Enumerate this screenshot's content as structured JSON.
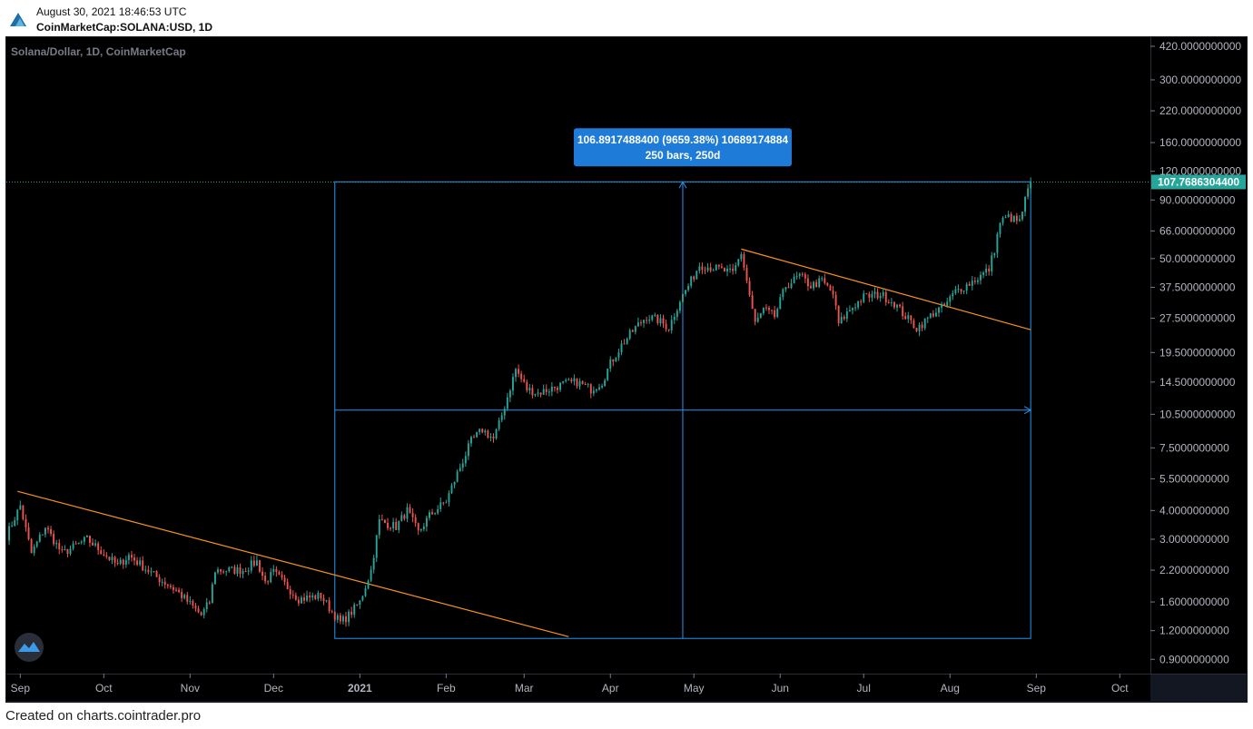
{
  "header": {
    "datetime": "August 30, 2021 18:46:53 UTC",
    "symbol": "CoinMarketCap:SOLANA:USD, 1D",
    "logo_icon": "tradingview-logo-icon"
  },
  "footer": {
    "text": "Created on charts.cointrader.pro"
  },
  "colors": {
    "background": "#000000",
    "up": "#26a69a",
    "down": "#ef5350",
    "trendline": "#f7931a",
    "measure": "#2196f3",
    "price_label_bg": "#26a69a"
  },
  "chart_data": {
    "type": "candlestick",
    "title": "Solana/Dollar, 1D, CoinMarketCap",
    "scale": "log",
    "ylim": [
      0.78,
      460
    ],
    "xlim": [
      "2020-08-27",
      "2021-10-12"
    ],
    "y_ticks": [
      "420.0000000000",
      "300.0000000000",
      "220.0000000000",
      "160.0000000000",
      "120.0000000000",
      "90.0000000000",
      "66.0000000000",
      "50.0000000000",
      "37.5000000000",
      "27.5000000000",
      "19.5000000000",
      "14.5000000000",
      "10.5000000000",
      "7.5000000000",
      "5.5000000000",
      "4.0000000000",
      "3.0000000000",
      "2.2000000000",
      "1.6000000000",
      "1.2000000000",
      "0.9000000000"
    ],
    "x_ticks": [
      {
        "label": "Sep",
        "date": "2020-09-01"
      },
      {
        "label": "Oct",
        "date": "2020-10-01"
      },
      {
        "label": "Nov",
        "date": "2020-11-01"
      },
      {
        "label": "Dec",
        "date": "2020-12-01"
      },
      {
        "label": "2021",
        "date": "2021-01-01"
      },
      {
        "label": "Feb",
        "date": "2021-02-01"
      },
      {
        "label": "Mar",
        "date": "2021-03-01"
      },
      {
        "label": "Apr",
        "date": "2021-04-01"
      },
      {
        "label": "May",
        "date": "2021-05-01"
      },
      {
        "label": "Jun",
        "date": "2021-06-01"
      },
      {
        "label": "Jul",
        "date": "2021-07-01"
      },
      {
        "label": "Aug",
        "date": "2021-08-01"
      },
      {
        "label": "Sep",
        "date": "2021-09-01"
      },
      {
        "label": "Oct",
        "date": "2021-10-01"
      }
    ],
    "last_price": 107.76863044,
    "last_price_label": "107.7686304400",
    "keypoints": [
      [
        "2020-08-27",
        3.1
      ],
      [
        "2020-09-01",
        4.2
      ],
      [
        "2020-09-05",
        2.6
      ],
      [
        "2020-09-10",
        3.4
      ],
      [
        "2020-09-16",
        2.6
      ],
      [
        "2020-09-25",
        3.0
      ],
      [
        "2020-10-01",
        2.6
      ],
      [
        "2020-10-06",
        2.3
      ],
      [
        "2020-10-10",
        2.55
      ],
      [
        "2020-10-20",
        2.05
      ],
      [
        "2020-10-27",
        1.8
      ],
      [
        "2020-11-05",
        1.4
      ],
      [
        "2020-11-08",
        1.6
      ],
      [
        "2020-11-10",
        2.2
      ],
      [
        "2020-11-20",
        2.2
      ],
      [
        "2020-11-25",
        2.4
      ],
      [
        "2020-11-28",
        1.95
      ],
      [
        "2020-12-01",
        2.15
      ],
      [
        "2020-12-10",
        1.65
      ],
      [
        "2020-12-18",
        1.7
      ],
      [
        "2020-12-22",
        1.45
      ],
      [
        "2020-12-25",
        1.3
      ],
      [
        "2020-12-28",
        1.4
      ],
      [
        "2021-01-01",
        1.6
      ],
      [
        "2021-01-05",
        2.2
      ],
      [
        "2021-01-08",
        3.6
      ],
      [
        "2021-01-14",
        3.4
      ],
      [
        "2021-01-18",
        4.0
      ],
      [
        "2021-01-22",
        3.2
      ],
      [
        "2021-01-26",
        3.8
      ],
      [
        "2021-02-01",
        4.4
      ],
      [
        "2021-02-05",
        5.8
      ],
      [
        "2021-02-10",
        8.0
      ],
      [
        "2021-02-14",
        9.0
      ],
      [
        "2021-02-18",
        8.2
      ],
      [
        "2021-02-20",
        9.5
      ],
      [
        "2021-02-23",
        12.5
      ],
      [
        "2021-02-26",
        16.5
      ],
      [
        "2021-03-02",
        13.5
      ],
      [
        "2021-03-06",
        13.0
      ],
      [
        "2021-03-10",
        13.5
      ],
      [
        "2021-03-15",
        14.2
      ],
      [
        "2021-03-20",
        14.5
      ],
      [
        "2021-03-25",
        13.5
      ],
      [
        "2021-03-29",
        14.5
      ],
      [
        "2021-04-01",
        17.5
      ],
      [
        "2021-04-05",
        21
      ],
      [
        "2021-04-10",
        25
      ],
      [
        "2021-04-14",
        28
      ],
      [
        "2021-04-18",
        27
      ],
      [
        "2021-04-22",
        25
      ],
      [
        "2021-04-26",
        33
      ],
      [
        "2021-04-30",
        40
      ],
      [
        "2021-05-03",
        47
      ],
      [
        "2021-05-10",
        45
      ],
      [
        "2021-05-15",
        43
      ],
      [
        "2021-05-18",
        53
      ],
      [
        "2021-05-20",
        40
      ],
      [
        "2021-05-23",
        26
      ],
      [
        "2021-05-26",
        30
      ],
      [
        "2021-05-30",
        28
      ],
      [
        "2021-06-03",
        38
      ],
      [
        "2021-06-08",
        42
      ],
      [
        "2021-06-12",
        38
      ],
      [
        "2021-06-16",
        40
      ],
      [
        "2021-06-20",
        35
      ],
      [
        "2021-06-22",
        26
      ],
      [
        "2021-06-26",
        30
      ],
      [
        "2021-07-01",
        34
      ],
      [
        "2021-07-07",
        35
      ],
      [
        "2021-07-12",
        32
      ],
      [
        "2021-07-16",
        28
      ],
      [
        "2021-07-20",
        25
      ],
      [
        "2021-07-22",
        26
      ],
      [
        "2021-07-26",
        29
      ],
      [
        "2021-07-30",
        31
      ],
      [
        "2021-08-03",
        36
      ],
      [
        "2021-08-08",
        39
      ],
      [
        "2021-08-12",
        42
      ],
      [
        "2021-08-15",
        45
      ],
      [
        "2021-08-17",
        55
      ],
      [
        "2021-08-19",
        72
      ],
      [
        "2021-08-22",
        76
      ],
      [
        "2021-08-26",
        72
      ],
      [
        "2021-08-28",
        90
      ],
      [
        "2021-08-30",
        107.77
      ]
    ],
    "trendlines": [
      {
        "from": [
          "2020-08-31",
          4.85
        ],
        "to": [
          "2021-03-17",
          1.13
        ]
      },
      {
        "from": [
          "2021-05-18",
          55
        ],
        "to": [
          "2021-08-30",
          24.5
        ]
      }
    ],
    "measure": {
      "from": [
        "2020-12-23",
        1.11
      ],
      "to": [
        "2021-08-30",
        108.0
      ],
      "label_line1": "106.8917488400 (9659.38%) 10689174884",
      "label_line2": "250 bars, 250d"
    }
  }
}
